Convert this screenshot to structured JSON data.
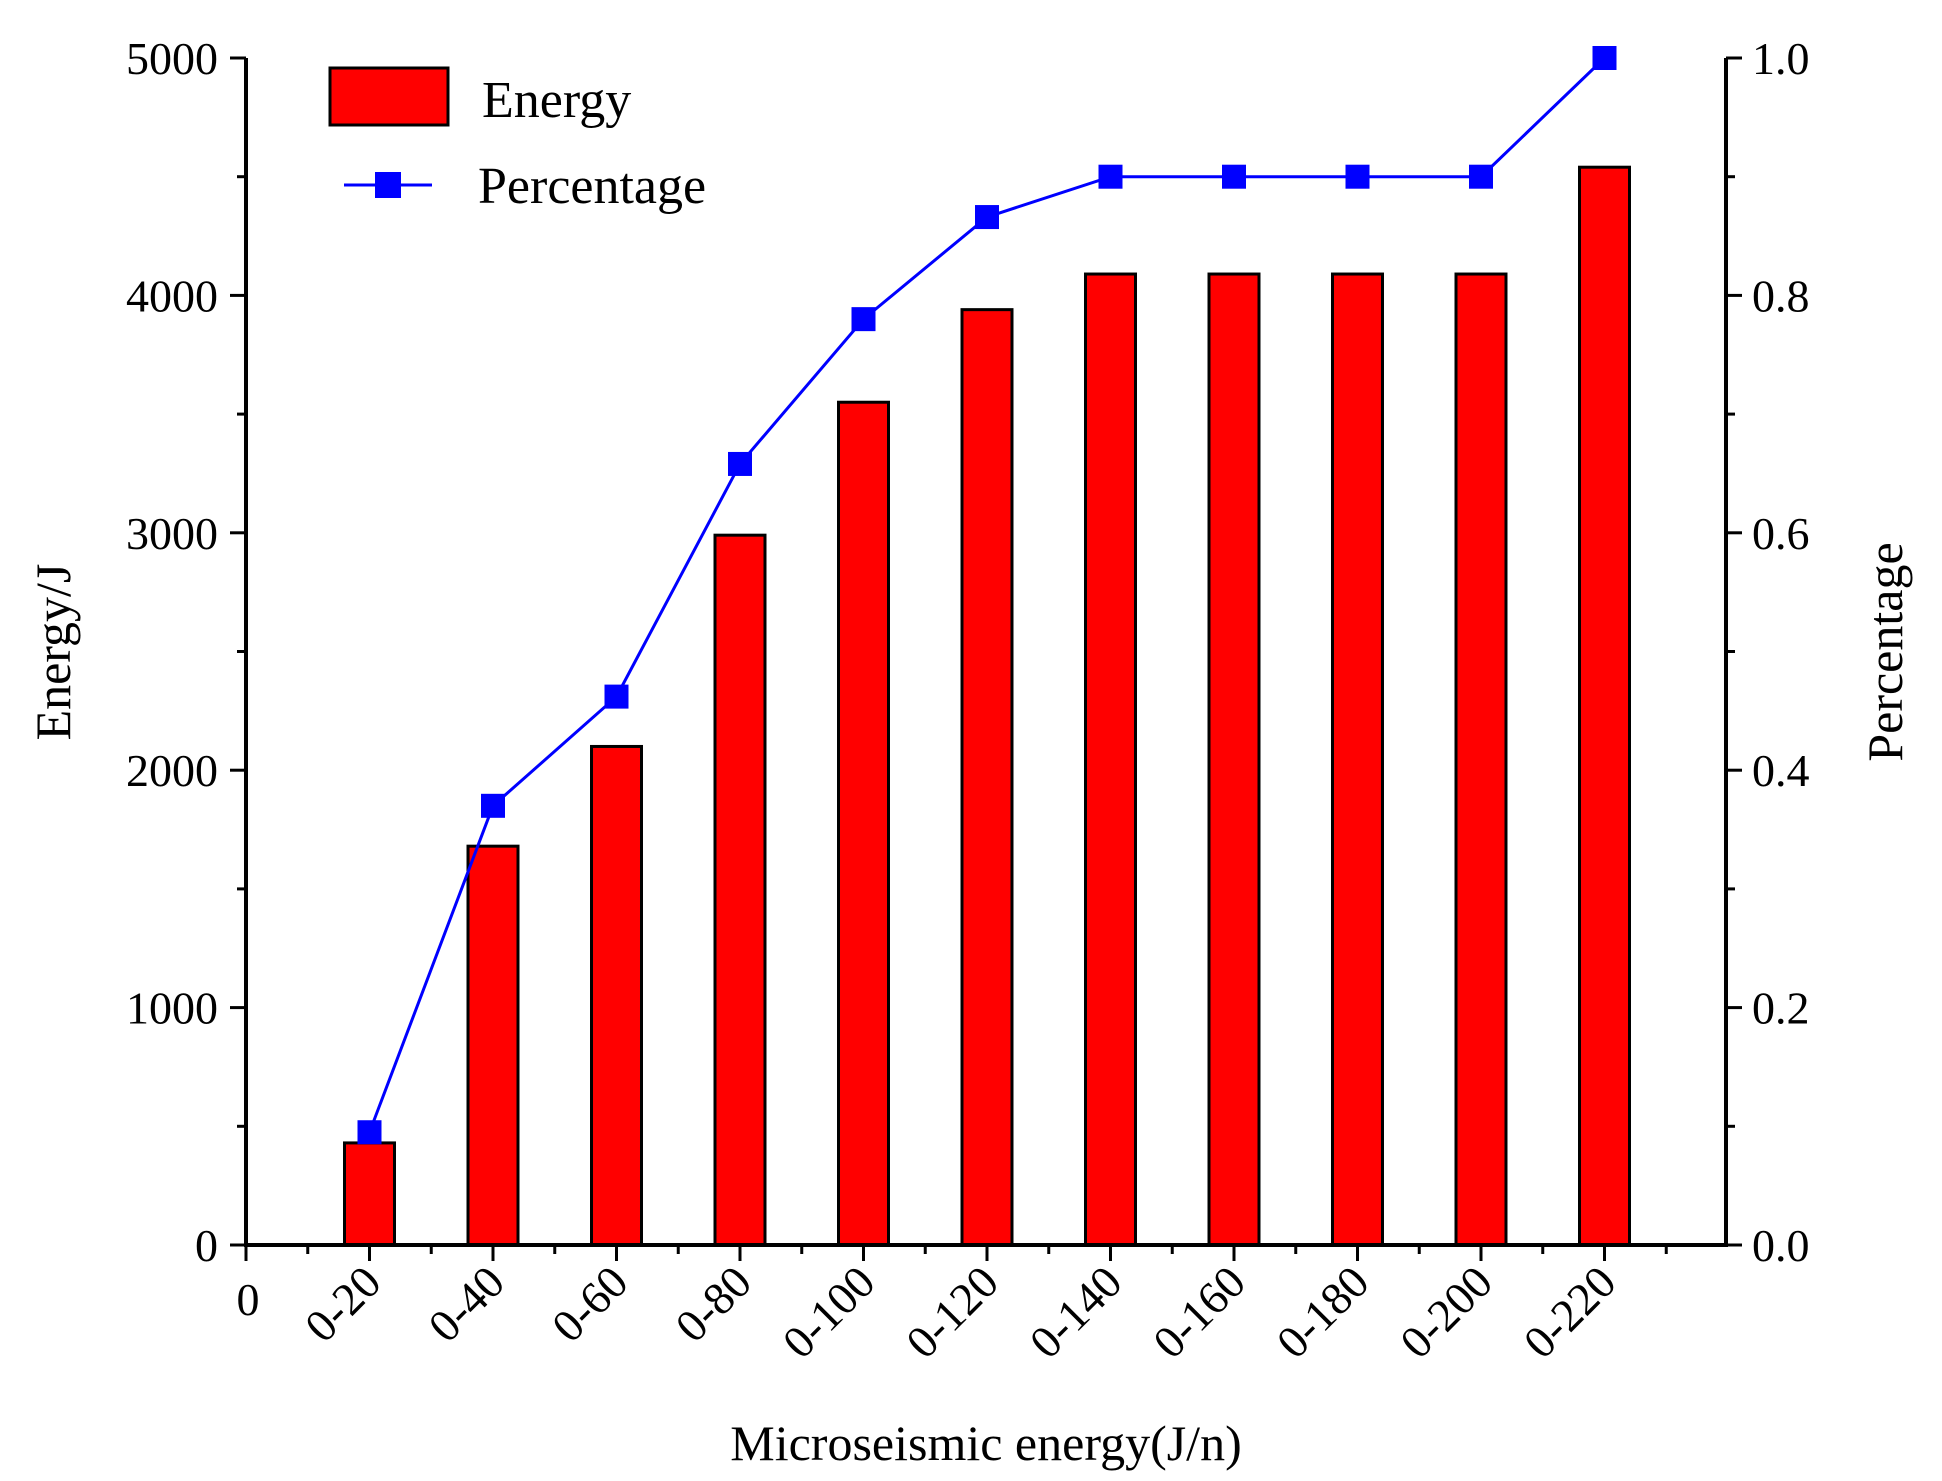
{
  "chart_data": {
    "type": "bar+line",
    "xlabel": "Microseismic energy(J/n)",
    "ylabel": "Energy/J",
    "y2label": "Percentage",
    "x_zero_label": "0",
    "categories": [
      "0-20",
      "0-40",
      "0-60",
      "0-80",
      "0-100",
      "0-120",
      "0-140",
      "0-160",
      "0-180",
      "0-200",
      "0-220"
    ],
    "ylim": [
      0,
      5000
    ],
    "yticks": [
      0,
      1000,
      2000,
      3000,
      4000,
      5000
    ],
    "y2lim": [
      0,
      1.0
    ],
    "y2ticks": [
      "0.0",
      "0.2",
      "0.4",
      "0.6",
      "0.8",
      "1.0"
    ],
    "series": [
      {
        "name": "Energy",
        "type": "bar",
        "axis": "left",
        "color": "#ff0000",
        "values": [
          430,
          1680,
          2100,
          2990,
          3550,
          3940,
          4090,
          4090,
          4090,
          4090,
          4540
        ]
      },
      {
        "name": "Percentage",
        "type": "line",
        "axis": "right",
        "color": "#0000ff",
        "values": [
          0.095,
          0.37,
          0.462,
          0.658,
          0.78,
          0.866,
          0.9,
          0.9,
          0.9,
          0.9,
          1.0
        ]
      }
    ],
    "legend": {
      "position": "top-left"
    }
  }
}
